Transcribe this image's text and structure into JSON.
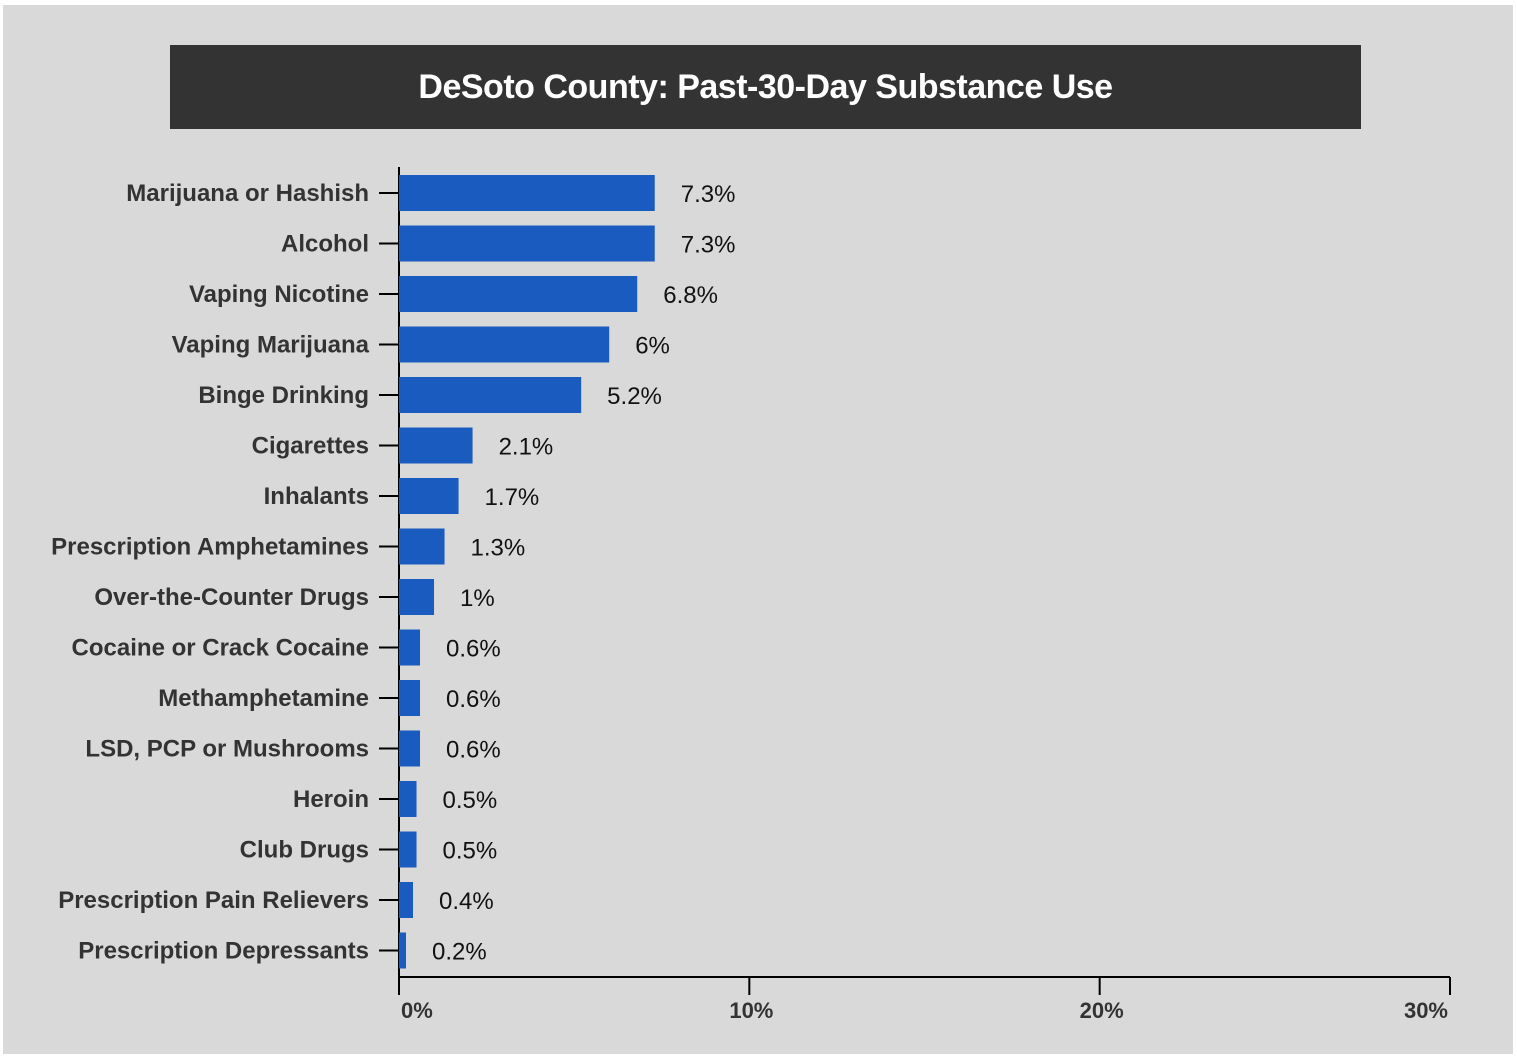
{
  "chart_data": {
    "type": "bar",
    "orientation": "horizontal",
    "title": "DeSoto County: Past-30-Day Substance Use",
    "categories": [
      "Marijuana or Hashish",
      "Alcohol",
      "Vaping Nicotine",
      "Vaping Marijuana",
      "Binge Drinking",
      "Cigarettes",
      "Inhalants",
      "Prescription Amphetamines",
      "Over-the-Counter Drugs",
      "Cocaine or Crack Cocaine",
      "Methamphetamine",
      "LSD, PCP or Mushrooms",
      "Heroin",
      "Club Drugs",
      "Prescription Pain Relievers",
      "Prescription Depressants"
    ],
    "values": [
      7.3,
      7.3,
      6.8,
      6,
      5.2,
      2.1,
      1.7,
      1.3,
      1,
      0.6,
      0.6,
      0.6,
      0.5,
      0.5,
      0.4,
      0.2
    ],
    "value_labels": [
      "7.3%",
      "7.3%",
      "6.8%",
      "6%",
      "5.2%",
      "2.1%",
      "1.7%",
      "1.3%",
      "1%",
      "0.6%",
      "0.6%",
      "0.6%",
      "0.5%",
      "0.5%",
      "0.4%",
      "0.2%"
    ],
    "xlim": [
      0,
      30
    ],
    "x_ticks": [
      0,
      10,
      20,
      30
    ],
    "x_tick_labels": [
      "0%",
      "10%",
      "20%",
      "30%"
    ],
    "xlabel": "",
    "ylabel": "",
    "grid": false,
    "legend": "none",
    "colors": {
      "bar": "#1a5bbf",
      "title_background": "#333333",
      "title_text": "#ffffff",
      "background": "#d9d9d9"
    }
  }
}
